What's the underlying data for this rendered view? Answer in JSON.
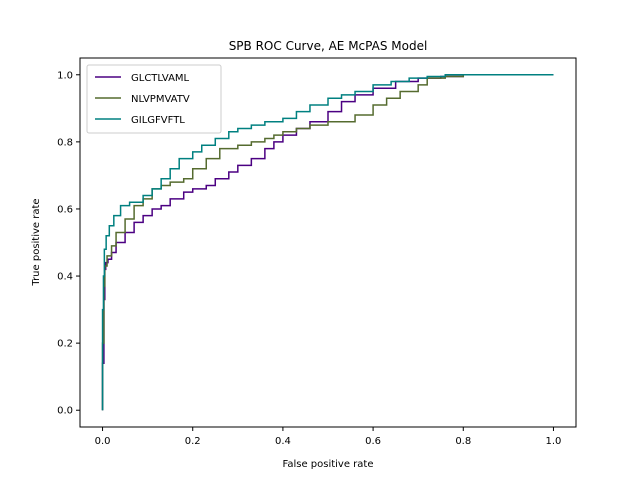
{
  "chart_data": {
    "type": "line",
    "title": "SPB ROC Curve, AE McPAS Model",
    "xlabel": "False positive rate",
    "ylabel": "True positive rate",
    "xlim": [
      -0.05,
      1.05
    ],
    "ylim": [
      -0.05,
      1.05
    ],
    "xticks": [
      "0.0",
      "0.2",
      "0.4",
      "0.6",
      "0.8",
      "1.0"
    ],
    "yticks": [
      "0.0",
      "0.2",
      "0.4",
      "0.6",
      "0.8",
      "1.0"
    ],
    "grid": false,
    "legend": "top-left",
    "series": [
      {
        "name": "GLCTLVAML",
        "color": "#4b0082",
        "points": [
          [
            0.0,
            0.0
          ],
          [
            0.003,
            0.14
          ],
          [
            0.005,
            0.33
          ],
          [
            0.007,
            0.42
          ],
          [
            0.012,
            0.44
          ],
          [
            0.02,
            0.45
          ],
          [
            0.03,
            0.47
          ],
          [
            0.05,
            0.5
          ],
          [
            0.07,
            0.53
          ],
          [
            0.09,
            0.56
          ],
          [
            0.11,
            0.58
          ],
          [
            0.13,
            0.6
          ],
          [
            0.15,
            0.61
          ],
          [
            0.18,
            0.63
          ],
          [
            0.2,
            0.65
          ],
          [
            0.23,
            0.66
          ],
          [
            0.25,
            0.67
          ],
          [
            0.28,
            0.69
          ],
          [
            0.3,
            0.71
          ],
          [
            0.33,
            0.73
          ],
          [
            0.36,
            0.75
          ],
          [
            0.38,
            0.78
          ],
          [
            0.4,
            0.8
          ],
          [
            0.43,
            0.82
          ],
          [
            0.46,
            0.84
          ],
          [
            0.5,
            0.86
          ],
          [
            0.53,
            0.89
          ],
          [
            0.56,
            0.92
          ],
          [
            0.6,
            0.94
          ],
          [
            0.65,
            0.96
          ],
          [
            0.7,
            0.98
          ],
          [
            0.75,
            0.99
          ],
          [
            0.8,
            0.995
          ],
          [
            0.88,
            1.0
          ],
          [
            1.0,
            1.0
          ]
        ]
      },
      {
        "name": "NLVPMVATV",
        "color": "#556b2f",
        "points": [
          [
            0.0,
            0.0
          ],
          [
            0.003,
            0.2
          ],
          [
            0.005,
            0.37
          ],
          [
            0.01,
            0.43
          ],
          [
            0.02,
            0.46
          ],
          [
            0.03,
            0.49
          ],
          [
            0.05,
            0.53
          ],
          [
            0.07,
            0.57
          ],
          [
            0.09,
            0.61
          ],
          [
            0.11,
            0.63
          ],
          [
            0.13,
            0.66
          ],
          [
            0.15,
            0.67
          ],
          [
            0.18,
            0.68
          ],
          [
            0.2,
            0.69
          ],
          [
            0.23,
            0.72
          ],
          [
            0.26,
            0.75
          ],
          [
            0.28,
            0.78
          ],
          [
            0.3,
            0.78
          ],
          [
            0.33,
            0.79
          ],
          [
            0.36,
            0.8
          ],
          [
            0.38,
            0.81
          ],
          [
            0.4,
            0.82
          ],
          [
            0.43,
            0.83
          ],
          [
            0.46,
            0.84
          ],
          [
            0.5,
            0.85
          ],
          [
            0.53,
            0.86
          ],
          [
            0.56,
            0.86
          ],
          [
            0.6,
            0.88
          ],
          [
            0.63,
            0.91
          ],
          [
            0.66,
            0.93
          ],
          [
            0.7,
            0.95
          ],
          [
            0.72,
            0.97
          ],
          [
            0.76,
            0.99
          ],
          [
            0.8,
            0.995
          ],
          [
            0.88,
            1.0
          ]
        ]
      },
      {
        "name": "GILGFVFTL",
        "color": "#008080",
        "points": [
          [
            0.0,
            0.0
          ],
          [
            0.002,
            0.3
          ],
          [
            0.004,
            0.4
          ],
          [
            0.008,
            0.48
          ],
          [
            0.015,
            0.52
          ],
          [
            0.025,
            0.55
          ],
          [
            0.04,
            0.58
          ],
          [
            0.06,
            0.61
          ],
          [
            0.09,
            0.62
          ],
          [
            0.11,
            0.64
          ],
          [
            0.13,
            0.66
          ],
          [
            0.15,
            0.69
          ],
          [
            0.17,
            0.72
          ],
          [
            0.2,
            0.75
          ],
          [
            0.22,
            0.77
          ],
          [
            0.25,
            0.79
          ],
          [
            0.28,
            0.81
          ],
          [
            0.3,
            0.83
          ],
          [
            0.33,
            0.84
          ],
          [
            0.36,
            0.85
          ],
          [
            0.4,
            0.86
          ],
          [
            0.43,
            0.87
          ],
          [
            0.46,
            0.89
          ],
          [
            0.5,
            0.91
          ],
          [
            0.53,
            0.93
          ],
          [
            0.56,
            0.94
          ],
          [
            0.6,
            0.95
          ],
          [
            0.64,
            0.97
          ],
          [
            0.68,
            0.98
          ],
          [
            0.72,
            0.99
          ],
          [
            0.76,
            0.995
          ],
          [
            0.8,
            1.0
          ],
          [
            1.0,
            1.0
          ]
        ]
      }
    ]
  }
}
